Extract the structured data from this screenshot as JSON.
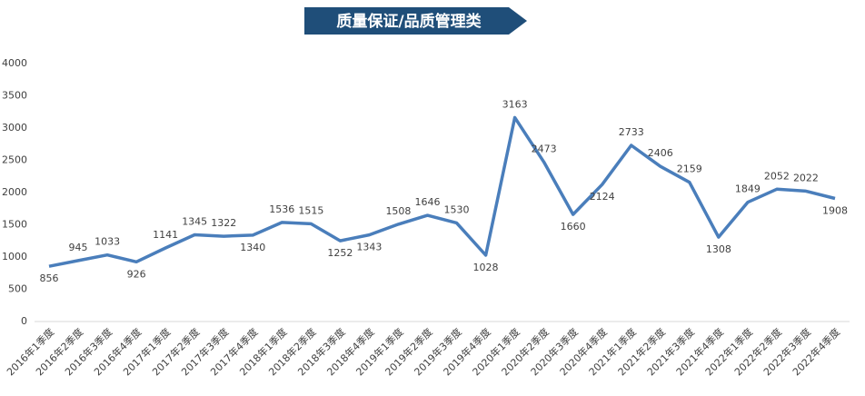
{
  "chart_data": {
    "type": "line",
    "title": "质量保证/品质管理类",
    "categories": [
      "2016年1季度",
      "2016年2季度",
      "2016年3季度",
      "2016年4季度",
      "2017年1季度",
      "2017年2季度",
      "2017年3季度",
      "2017年4季度",
      "2018年1季度",
      "2018年2季度",
      "2018年3季度",
      "2018年4季度",
      "2019年1季度",
      "2019年2季度",
      "2019年3季度",
      "2019年4季度",
      "2020年1季度",
      "2020年2季度",
      "2020年3季度",
      "2020年4季度",
      "2021年1季度",
      "2021年2季度",
      "2021年3季度",
      "2021年4季度",
      "2022年1季度",
      "2022年2季度",
      "2022年3季度",
      "2022年4季度"
    ],
    "values": [
      856,
      945,
      1033,
      926,
      1141,
      1345,
      1322,
      1340,
      1536,
      1515,
      1252,
      1343,
      1508,
      1646,
      1530,
      1028,
      3163,
      2473,
      1660,
      2124,
      2733,
      2406,
      2159,
      1308,
      1849,
      2052,
      2022,
      1908
    ],
    "color": "#4a7ebb",
    "ylim": [
      0,
      4000
    ],
    "yticks": [
      0,
      500,
      1000,
      1500,
      2000,
      2500,
      3000,
      3500,
      4000
    ],
    "grid": false
  }
}
